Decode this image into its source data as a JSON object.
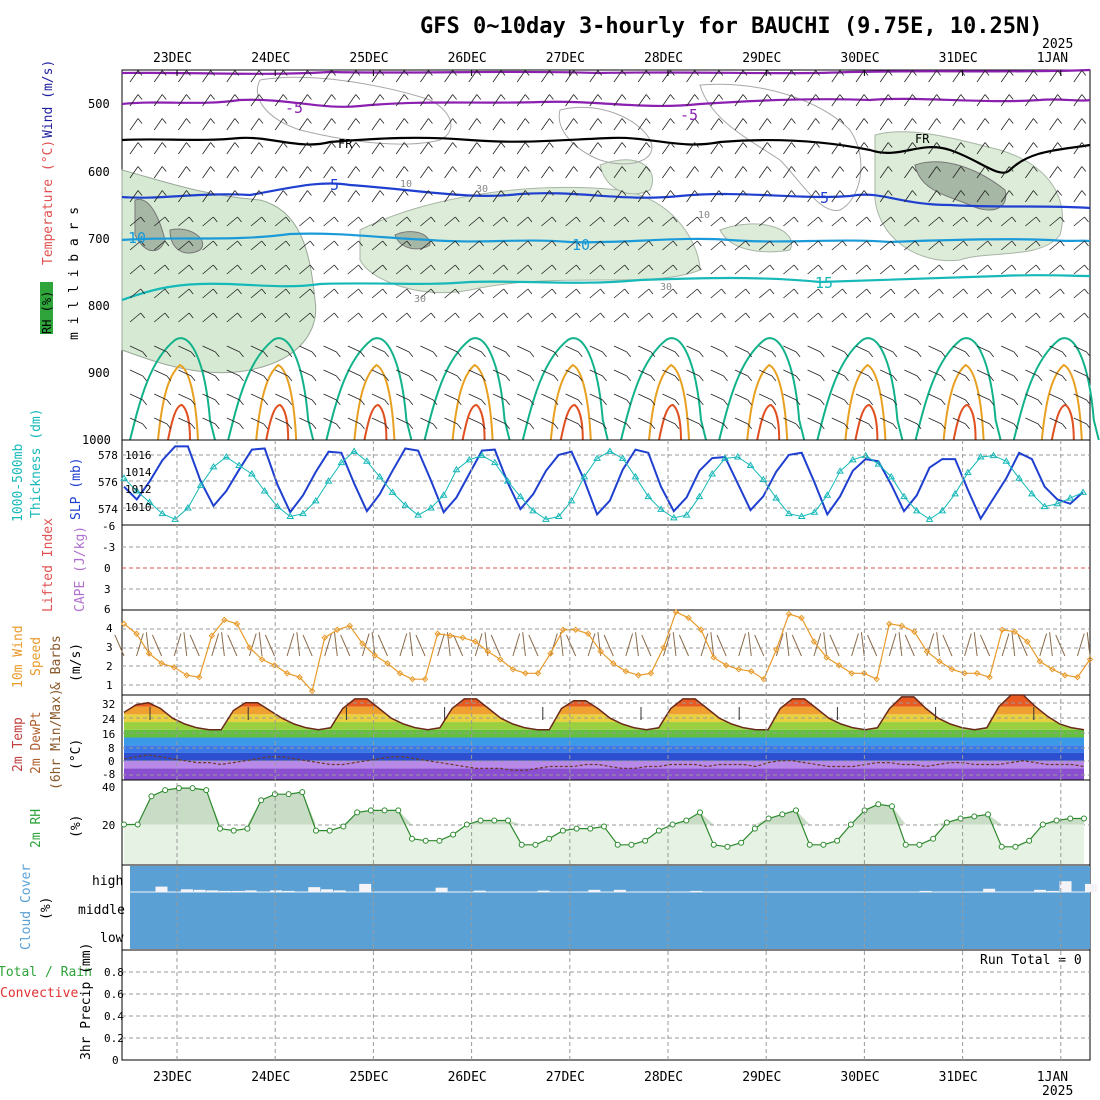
{
  "title": "GFS 0~10day 3-hourly for BAUCHI (9.75E, 10.25N)",
  "year_label": "2025",
  "days": [
    "23DEC",
    "24DEC",
    "25DEC",
    "26DEC",
    "27DEC",
    "28DEC",
    "29DEC",
    "30DEC",
    "31DEC",
    "1JAN"
  ],
  "colors": {
    "purple": "#8a1fb0",
    "blue": "#1f3fd0",
    "cyan": "#1a9ad8",
    "teal": "#16b8b8",
    "green": "#12b28a",
    "orange": "#e8a020",
    "red": "#e05020",
    "navy": "#2a3cc8",
    "wind_orange": "#e89a2a",
    "cloud": "#5aa0d4"
  },
  "panels": {
    "upper": {
      "y_axis": "m i l l i b a r s",
      "labels": {
        "rh": "RH (%)",
        "temp": "Temperature (°C)",
        "wind": "Wind (m/s)"
      },
      "ticks": [
        "500",
        "600",
        "700",
        "800",
        "900",
        "1000"
      ],
      "contour_labels": {
        "m5a": "-5",
        "m5b": "-5",
        "fr1": "FR",
        "fr2": "FR",
        "p5a": "5",
        "p5b": "5",
        "p10a": "10",
        "p10b": "10",
        "p15": "15",
        "rh30a": "30",
        "rh30b": "30",
        "rh30c": "30",
        "rh10a": "10",
        "rh10b": "10"
      }
    },
    "thickness": {
      "label1": "1000-500mb",
      "label2": "Thickness (dm)",
      "label3": "SLP (mb)",
      "left_ticks": [
        "578",
        "576",
        "574"
      ],
      "right_ticks": [
        "1016",
        "1014",
        "1012",
        "1010"
      ]
    },
    "cape": {
      "label1": "Lifted Index",
      "label2": "CAPE (J/kg)",
      "ticks": [
        "-6",
        "-3",
        "0",
        "3",
        "6"
      ]
    },
    "wind10": {
      "label1": "10m Wind",
      "label2": "Speed",
      "label3": "& Barbs",
      "unit": "(m/s)",
      "ticks": [
        "4",
        "3",
        "2",
        "1"
      ]
    },
    "temp2m": {
      "label1": "2m Temp",
      "label2": "2m DewPt",
      "label3": "(6hr Min/Max)",
      "unit": "(°C)",
      "ticks": [
        "32",
        "24",
        "16",
        "8",
        "0",
        "-8"
      ]
    },
    "rh2m": {
      "label": "2m RH",
      "unit": "(%)",
      "ticks": [
        "40",
        "20"
      ]
    },
    "cloud": {
      "label1": "Cloud Cover",
      "unit": "(%)",
      "levels": [
        "high",
        "middle",
        "low"
      ]
    },
    "precip": {
      "label1": "Total / Rain",
      "label2": "Convective",
      "label3": "3hr Precip (mm)",
      "run_total": "Run Total = 0",
      "ticks": [
        "0.8",
        "0.6",
        "0.4",
        "0.2",
        "0"
      ]
    }
  },
  "chart_data": [
    {
      "type": "line",
      "name": "thickness_slp",
      "series": [
        {
          "name": "SLP (mb)",
          "axis": "right",
          "values": [
            1012.6,
            1011.4,
            1013.1,
            1015.1,
            1016.4,
            1016.4,
            1013.1,
            1010.8,
            1012.2,
            1014.2,
            1016.1,
            1016.2,
            1012.8,
            1010.2,
            1011.8,
            1014.0,
            1015.9,
            1015.8,
            1012.9,
            1010.3,
            1011.9,
            1014.1,
            1016.2,
            1016.0,
            1013.2,
            1010.2,
            1011.6,
            1013.8,
            1016.0,
            1016.1,
            1013.0,
            1010.5,
            1011.9,
            1014.1,
            1015.6,
            1015.9,
            1013.2,
            1010.0,
            1011.3,
            1014.2,
            1016.1,
            1015.8,
            1012.6,
            1010.3,
            1011.6,
            1014.1,
            1015.3,
            1015.4,
            1012.9,
            1010.4,
            1011.7,
            1014.0,
            1015.6,
            1015.8,
            1013.0,
            1010.0,
            1011.7,
            1014.1,
            1015.2,
            1015.0,
            1012.8,
            1010.3,
            1011.8,
            1014.4,
            1015.2,
            1015.2,
            1012.3,
            1009.6,
            1011.5,
            1013.4,
            1015.8,
            1015.2,
            1012.6,
            1011.4,
            1011.0,
            1012.1
          ]
        },
        {
          "name": "1000-500mb Thickness (dm)",
          "axis": "left",
          "values": [
            576.3,
            575.4,
            574.6,
            573.8,
            573.4,
            574.2,
            575.8,
            577.1,
            577.8,
            577.2,
            576.6,
            575.4,
            574.3,
            573.6,
            573.8,
            574.7,
            576.1,
            577.4,
            578.2,
            577.5,
            576.4,
            575.3,
            574.4,
            573.7,
            574.2,
            575.1,
            576.9,
            577.6,
            577.9,
            577.4,
            576.1,
            575.0,
            574.0,
            573.4,
            573.6,
            574.7,
            576.4,
            577.7,
            578.2,
            577.7,
            576.4,
            575.0,
            574.1,
            573.5,
            573.7,
            575.0,
            576.6,
            577.7,
            577.8,
            577.2,
            576.2,
            574.9,
            573.8,
            573.6,
            573.9,
            575.1,
            576.8,
            577.6,
            577.9,
            577.3,
            576.4,
            575.0,
            574.0,
            573.4,
            574.0,
            575.2,
            576.7,
            577.8,
            577.9,
            577.5,
            576.3,
            575.2,
            574.3,
            574.5,
            574.9,
            575.3
          ]
        }
      ],
      "ylim_left": [
        573,
        579
      ],
      "ylim_right": [
        1009,
        1017
      ]
    },
    {
      "type": "line",
      "name": "wind10m",
      "series": [
        {
          "name": "10m Wind Speed",
          "values": [
            4.1,
            3.6,
            2.6,
            2.1,
            1.9,
            1.5,
            1.4,
            3.5,
            4.3,
            4.1,
            2.9,
            2.3,
            2.0,
            1.6,
            1.4,
            0.7,
            3.4,
            3.8,
            4.0,
            3.1,
            2.5,
            2.1,
            1.6,
            1.3,
            1.3,
            3.6,
            3.5,
            3.4,
            3.2,
            2.7,
            2.3,
            1.8,
            1.6,
            1.6,
            2.6,
            3.8,
            3.8,
            3.6,
            2.7,
            2.1,
            1.7,
            1.5,
            1.6,
            2.9,
            4.7,
            4.4,
            3.8,
            2.4,
            2.0,
            1.8,
            1.7,
            1.3,
            2.8,
            4.6,
            4.4,
            3.2,
            2.4,
            2.0,
            1.6,
            1.6,
            1.3,
            4.1,
            4.0,
            3.7,
            2.7,
            2.2,
            1.8,
            1.6,
            1.6,
            1.4,
            3.8,
            3.7,
            3.2,
            2.2,
            1.8,
            1.5,
            1.4,
            2.3
          ]
        }
      ],
      "ylim": [
        0.5,
        4.8
      ]
    },
    {
      "type": "area",
      "name": "temp2m",
      "series": [
        {
          "name": "2m Temp",
          "values": [
            25,
            29,
            30,
            27,
            22,
            19,
            17,
            16,
            16,
            26,
            30,
            30,
            26,
            22,
            19,
            17,
            16,
            17,
            27,
            32,
            32,
            27,
            22,
            19,
            17,
            16,
            17,
            27,
            32,
            32,
            27,
            22,
            19,
            17,
            16,
            16,
            27,
            31,
            31,
            27,
            22,
            19,
            17,
            16,
            17,
            27,
            32,
            32,
            27,
            22,
            19,
            17,
            16,
            16,
            27,
            32,
            32,
            27,
            22,
            19,
            17,
            16,
            17,
            27,
            33,
            33,
            27,
            22,
            19,
            17,
            16,
            17,
            28,
            34,
            34,
            28,
            23,
            19,
            17,
            16
          ]
        },
        {
          "name": "2m DewPt",
          "values": [
            1,
            2,
            3,
            2,
            1,
            0,
            -1,
            -1,
            -2,
            -1,
            0,
            1,
            2,
            2,
            1,
            0,
            -1,
            -2,
            -2,
            -1,
            0,
            1,
            2,
            2,
            1,
            0,
            -1,
            -2,
            -3,
            -4,
            -4,
            -4,
            -5,
            -5,
            -4,
            -3,
            -3,
            -3,
            -2,
            -2,
            -3,
            -4,
            -4,
            -3,
            -3,
            -2,
            -2,
            -2,
            -3,
            -2,
            -2,
            -2,
            -3,
            -1,
            0,
            0,
            -1,
            -2,
            -3,
            -3,
            -3,
            -2,
            -1,
            -1,
            -2,
            -2,
            -3,
            -2,
            -1,
            -1,
            -2,
            -2,
            -2,
            -1,
            0,
            -1,
            -2,
            -2,
            -2,
            -3
          ]
        }
      ],
      "ylim": [
        -10,
        34
      ]
    },
    {
      "type": "area",
      "name": "rh2m",
      "series": [
        {
          "name": "2m RH",
          "values": [
            20,
            20,
            34,
            37,
            38,
            38,
            37,
            18,
            17,
            18,
            32,
            35,
            35,
            36,
            17,
            17,
            19,
            26,
            27,
            27,
            27,
            13,
            12,
            12,
            15,
            20,
            22,
            22,
            22,
            10,
            10,
            13,
            17,
            18,
            18,
            19,
            10,
            10,
            12,
            17,
            20,
            22,
            26,
            10,
            9,
            11,
            18,
            23,
            25,
            27,
            10,
            10,
            12,
            20,
            27,
            30,
            29,
            10,
            10,
            13,
            21,
            23,
            24,
            25,
            9,
            9,
            12,
            20,
            22,
            23,
            23
          ]
        }
      ],
      "ylim": [
        0,
        42
      ]
    },
    {
      "type": "bar",
      "name": "cloud_high",
      "series": [
        {
          "name": "high",
          "values": [
            0,
            0,
            20,
            0,
            10,
            8,
            6,
            4,
            4,
            6,
            0,
            6,
            4,
            0,
            18,
            10,
            6,
            0,
            30,
            0,
            0,
            0,
            0,
            0,
            16,
            0,
            0,
            5,
            0,
            0,
            0,
            0,
            5,
            0,
            0,
            0,
            8,
            0,
            8,
            0,
            0,
            0,
            0,
            0,
            4,
            0,
            0,
            0,
            0,
            0,
            0,
            0,
            0,
            0,
            0,
            0,
            0,
            0,
            0,
            0,
            0,
            0,
            4,
            0,
            0,
            0,
            0,
            12,
            0,
            0,
            0,
            8,
            4,
            40,
            0,
            30
          ]
        }
      ],
      "ylim": [
        0,
        100
      ]
    },
    {
      "type": "bar",
      "name": "precip",
      "series": [
        {
          "name": "3hr Precip",
          "values": []
        }
      ],
      "ylim": [
        0,
        1
      ]
    }
  ]
}
